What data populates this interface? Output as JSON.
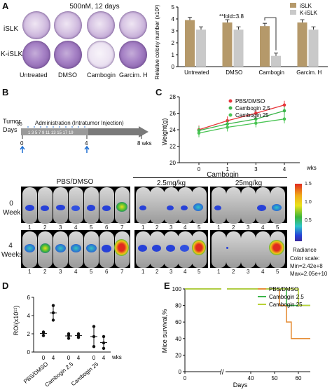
{
  "panelA": {
    "label": "A",
    "condition": "500nM, 12 days",
    "rows": [
      "iSLK",
      "K-iSLK"
    ],
    "cols": [
      "Untreated",
      "DMSO",
      "Cambogin",
      "Garcim. H"
    ],
    "legend": [
      "iSLK",
      "K-iSLK"
    ],
    "colors": {
      "islk": "#b5996a",
      "kislk": "#c9c9c9"
    },
    "ylabel": "Relative colony number (x10²)",
    "annotation": "**fold=3.8",
    "chart_data": {
      "type": "bar",
      "categories": [
        "Untreated",
        "DMSO",
        "Cambogin",
        "Garcim. H"
      ],
      "series": [
        {
          "name": "iSLK",
          "values": [
            3.9,
            3.7,
            3.4,
            3.7
          ]
        },
        {
          "name": "K-iSLK",
          "values": [
            3.1,
            3.1,
            0.9,
            3.1
          ]
        }
      ],
      "ylim": [
        0,
        5
      ],
      "yticks": [
        "0",
        "1",
        "2",
        "3",
        "4",
        "5"
      ]
    }
  },
  "panelB": {
    "label": "B",
    "tumor": "Tumor",
    "days": "Days",
    "day_start": "36",
    "admin_text": "Administration (Intratumor Injection)",
    "day_ticks": "1 3 5 7 9 11 13 15 17 19",
    "week_marks": [
      "0",
      "4",
      "8 wks"
    ]
  },
  "panelC": {
    "label": "C",
    "ylabel": "Weight(g)",
    "xunit": "wks",
    "legend": [
      "PBS/DMSO",
      "Cambogin 2.5",
      "Cambogin 25"
    ],
    "chart_data": {
      "type": "line",
      "x": [
        "0",
        "1",
        "3",
        "4"
      ],
      "series": [
        {
          "name": "PBS/DMSO",
          "color": "#e8363b",
          "values": [
            24.0,
            25.1,
            26.0,
            27.0
          ]
        },
        {
          "name": "Cambogin 2.5",
          "color": "#3cb54a",
          "values": [
            23.9,
            24.7,
            25.3,
            26.3
          ]
        },
        {
          "name": "Cambogin 25",
          "color": "#48c452",
          "values": [
            23.6,
            24.3,
            24.8,
            25.3
          ]
        }
      ],
      "ylim": [
        20,
        28
      ],
      "yticks": [
        "20",
        "22",
        "24",
        "26",
        "28"
      ]
    }
  },
  "imaging": {
    "group_top": "Cambogin",
    "groups": [
      "PBS/DMSO",
      "2.5mg/kg",
      "25mg/kg"
    ],
    "row_labels": [
      "0 Week",
      "4 Weeks"
    ],
    "mouse_ids": [
      [
        "1",
        "2",
        "3",
        "4",
        "5",
        "6",
        "7"
      ],
      [
        "1",
        "2",
        "3",
        "4",
        "5"
      ],
      [
        "1",
        "2",
        "3",
        "4",
        "5"
      ]
    ],
    "colorbar_ticks": [
      "1.5",
      "1.0",
      "0.5"
    ],
    "radiance": "Radiance",
    "scale_title": "Color scale:",
    "scale_min": "Min=2.42e+8",
    "scale_max": "Max=2.05e+10"
  },
  "panelD": {
    "label": "D",
    "ylabel": "ROI(x10¹¹)",
    "groups": [
      "PBS/DMSO",
      "Cambogin 2.5",
      "Cambogin 25"
    ],
    "time_labels": [
      "0",
      "4"
    ],
    "xunit": "wks",
    "chart_data": {
      "type": "scatter",
      "groups": [
        {
          "name": "PBS/DMSO",
          "wk0": [
            1.8,
            2.1,
            2.2
          ],
          "wk4": [
            3.5,
            4.3,
            5.1
          ]
        },
        {
          "name": "Cambogin 2.5",
          "wk0": [
            1.5,
            1.8,
            2.0
          ],
          "wk4": [
            1.6,
            1.8,
            2.0
          ]
        },
        {
          "name": "Cambogin 25",
          "wk0": [
            0.6,
            1.7,
            2.8
          ],
          "wk4": [
            0.4,
            1.0,
            1.7
          ]
        }
      ],
      "ylim": [
        0,
        6
      ],
      "yticks": [
        "0",
        "2",
        "4",
        "6"
      ]
    }
  },
  "panelE": {
    "label": "E",
    "ylabel": "Mice survival,%",
    "xlabel": "Days",
    "legend": [
      "PBS/DMSO",
      "Cambogin 2.5",
      "Cambogin 25"
    ],
    "chart_data": {
      "type": "line",
      "series": [
        {
          "name": "PBS/DMSO",
          "color": "#e58e37",
          "points": [
            [
              0,
              100
            ],
            [
              52,
              100
            ],
            [
              52,
              80
            ],
            [
              55,
              80
            ],
            [
              55,
              60
            ],
            [
              57,
              60
            ],
            [
              57,
              40
            ],
            [
              65,
              40
            ]
          ]
        },
        {
          "name": "Cambogin 2.5",
          "color": "#3cb54a",
          "points": [
            [
              0,
              100
            ],
            [
              55,
              100
            ],
            [
              55,
              80
            ],
            [
              65,
              80
            ]
          ]
        },
        {
          "name": "Cambogin 25",
          "color": "#b8d235",
          "points": [
            [
              0,
              100
            ],
            [
              60,
              100
            ],
            [
              60,
              80
            ],
            [
              65,
              80
            ]
          ]
        }
      ],
      "xlim": [
        0,
        65
      ],
      "xticks": [
        "0",
        "40",
        "50",
        "60"
      ],
      "ylim": [
        0,
        100
      ],
      "yticks": [
        "0",
        "20",
        "40",
        "60",
        "80",
        "100"
      ]
    }
  }
}
